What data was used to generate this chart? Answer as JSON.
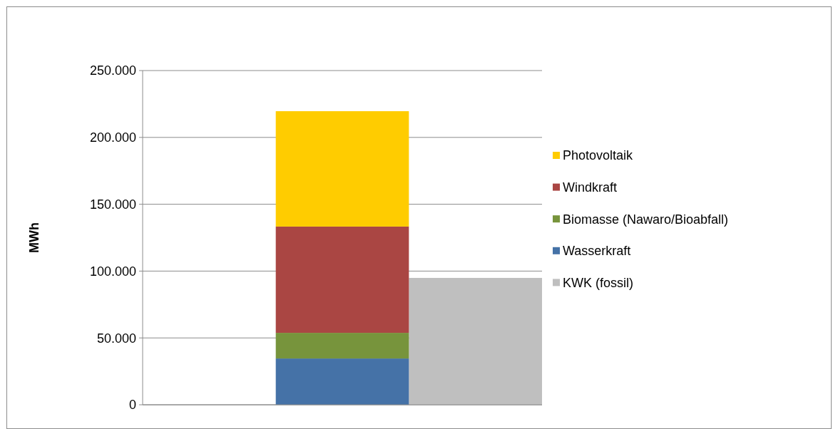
{
  "chart_data": {
    "type": "bar",
    "stacked": true,
    "ylabel": "MWh",
    "categories": [
      null,
      null,
      null
    ],
    "series": [
      {
        "name": "KWK (fossil)",
        "color": "#bfbfbf",
        "values": [
          null,
          null,
          94900
        ]
      },
      {
        "name": "Wasserkraft",
        "color": "#4572a7",
        "values": [
          null,
          34600,
          null
        ]
      },
      {
        "name": "Biomasse (Nawaro/Bioabfall)",
        "color": "#77943c",
        "values": [
          null,
          19200,
          null
        ]
      },
      {
        "name": "Windkraft",
        "color": "#aa4643",
        "values": [
          null,
          79500,
          null
        ]
      },
      {
        "name": "Photovoltaik",
        "color": "#ffcc00",
        "values": [
          null,
          86300,
          null
        ]
      }
    ],
    "ylim": [
      0,
      250000
    ],
    "yticks": [
      0,
      {
        "value": 50000,
        "label": "50.000"
      },
      {
        "value": 100000,
        "label": "100.000"
      },
      {
        "value": 150000,
        "label": "150.000"
      },
      {
        "value": 200000,
        "label": "200.000"
      },
      {
        "value": 250000,
        "label": "250.000"
      }
    ],
    "grid": "y",
    "legend": "right"
  }
}
